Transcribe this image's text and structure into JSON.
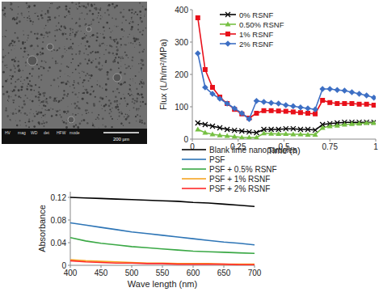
{
  "chart_data": [
    {
      "type": "line",
      "x_label": "Time (h)",
      "y_label": "Flux  (L/h/m²/MPa)",
      "x": [
        0.03,
        0.07,
        0.11,
        0.15,
        0.19,
        0.23,
        0.27,
        0.31,
        0.35,
        0.39,
        0.43,
        0.47,
        0.51,
        0.55,
        0.59,
        0.63,
        0.67,
        0.71,
        0.75,
        0.79,
        0.83,
        0.87,
        0.91,
        0.95,
        0.99
      ],
      "xlim": [
        0,
        1
      ],
      "xticks": [
        0,
        0.25,
        0.5,
        0.75,
        1
      ],
      "ylim": [
        0,
        400
      ],
      "yticks": [
        0,
        100,
        200,
        300,
        400
      ],
      "legend": "top",
      "series": [
        {
          "name": "0% RSNF",
          "color": "#000000",
          "marker": "x",
          "line_style": "solid",
          "values": [
            50,
            45,
            40,
            35,
            30,
            27,
            25,
            22,
            20,
            30,
            30,
            30,
            32,
            32,
            30,
            30,
            28,
            45,
            48,
            50,
            52,
            52,
            52,
            52,
            52
          ]
        },
        {
          "name": "0.50% RSNF",
          "color": "#76c043",
          "marker": "triangle",
          "line_style": "solid",
          "values": [
            30,
            20,
            15,
            12,
            10,
            8,
            5,
            5,
            5,
            18,
            17,
            16,
            16,
            15,
            15,
            14,
            14,
            35,
            40,
            42,
            45,
            47,
            48,
            50,
            50
          ]
        },
        {
          "name": "1% RSNF",
          "color": "#e8101a",
          "marker": "square",
          "line_style": "solid",
          "values": [
            375,
            215,
            160,
            130,
            110,
            92,
            78,
            65,
            80,
            88,
            88,
            87,
            86,
            84,
            82,
            80,
            78,
            120,
            113,
            110,
            110,
            110,
            108,
            108,
            105
          ]
        },
        {
          "name": "2% RSNF",
          "color": "#3d6fc4",
          "marker": "diamond",
          "line_style": "solid",
          "values": [
            265,
            160,
            140,
            125,
            110,
            95,
            80,
            62,
            118,
            115,
            112,
            110,
            105,
            102,
            98,
            95,
            92,
            155,
            155,
            152,
            150,
            145,
            140,
            135,
            128
          ]
        }
      ]
    },
    {
      "type": "line",
      "x_label": "Wave length (nm)",
      "y_label": "Absorbance",
      "x": [
        400,
        425,
        450,
        475,
        500,
        525,
        550,
        575,
        600,
        625,
        650,
        675,
        700
      ],
      "xlim": [
        400,
        700
      ],
      "xticks": [
        400,
        450,
        500,
        550,
        600,
        650,
        700
      ],
      "ylim": [
        0,
        0.13
      ],
      "yticks": [
        0,
        0.04,
        0.08,
        0.12
      ],
      "legend": "top-right",
      "series": [
        {
          "name": "Blank lime nanoparticles",
          "color": "#000000",
          "marker": "none",
          "line_style": "solid",
          "values": [
            0.12,
            0.119,
            0.118,
            0.117,
            0.116,
            0.115,
            0.114,
            0.113,
            0.111,
            0.11,
            0.108,
            0.106,
            0.104
          ]
        },
        {
          "name": "PSF",
          "color": "#2e75b6",
          "marker": "none",
          "line_style": "solid",
          "values": [
            0.075,
            0.071,
            0.067,
            0.063,
            0.059,
            0.056,
            0.053,
            0.05,
            0.047,
            0.044,
            0.041,
            0.039,
            0.036
          ]
        },
        {
          "name": "PSF + 0.5% RSNF",
          "color": "#3aa845",
          "marker": "none",
          "line_style": "solid",
          "values": [
            0.049,
            0.043,
            0.039,
            0.036,
            0.033,
            0.031,
            0.029,
            0.027,
            0.025,
            0.024,
            0.023,
            0.022,
            0.021
          ]
        },
        {
          "name": "PSF + 1% RSNF",
          "color": "#f5a623",
          "marker": "none",
          "line_style": "solid",
          "values": [
            0.01,
            0.008,
            0.007,
            0.006,
            0.005,
            0.004,
            0.004,
            0.003,
            0.003,
            0.003,
            0.002,
            0.002,
            0.002
          ]
        },
        {
          "name": "PSF + 2% RSNF",
          "color": "#ff2a2a",
          "marker": "none",
          "line_style": "solid",
          "values": [
            0.008,
            0.006,
            0.005,
            0.004,
            0.004,
            0.003,
            0.003,
            0.002,
            0.002,
            0.002,
            0.002,
            0.001,
            0.001
          ]
        }
      ]
    }
  ],
  "micrograph": {
    "info_labels": [
      "HV",
      "mag",
      "WD",
      "det",
      "HFW",
      "mode"
    ],
    "scale_bar": "200 µm"
  }
}
